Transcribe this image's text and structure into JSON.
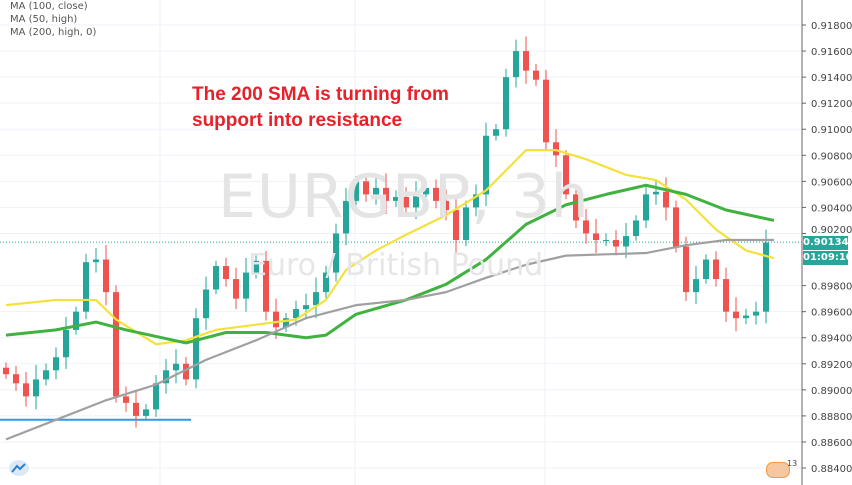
{
  "legend": [
    "MA (100, close)",
    "MA (50, high)",
    "MA (200, high, 0)"
  ],
  "annotation": [
    "The 200 SMA is turning from",
    "support into resistance"
  ],
  "watermark": {
    "symbol": "EURGBP, 3h",
    "name": "Euro / British Pound"
  },
  "price_label": "0.90134",
  "countdown_label": "01:09:10",
  "flag_count": "13",
  "colors": {
    "up": "#26a69a",
    "down": "#ef5350",
    "ma50": "#f5e13b",
    "ma100": "#3fb23f",
    "ma200": "#a0a0a0",
    "support": "#2f9be8",
    "annotation": "#e8202a"
  },
  "chart_data": {
    "type": "candlestick",
    "ylim": [
      0.883,
      0.9205
    ],
    "y_ticks": [
      "0.91800",
      "0.91600",
      "0.91400",
      "0.91200",
      "0.91000",
      "0.90800",
      "0.90600",
      "0.90400",
      "0.90200",
      "0.89800",
      "0.89600",
      "0.89400",
      "0.89200",
      "0.89000",
      "0.88800",
      "0.88600",
      "0.88400"
    ],
    "grid": true,
    "closes": [
      0.8912,
      0.8905,
      0.8895,
      0.8908,
      0.8915,
      0.8925,
      0.8946,
      0.896,
      0.8998,
      0.9,
      0.8975,
      0.8895,
      0.889,
      0.888,
      0.8885,
      0.8905,
      0.8915,
      0.892,
      0.8908,
      0.8955,
      0.8977,
      0.8995,
      0.8985,
      0.897,
      0.899,
      0.8999,
      0.896,
      0.8948,
      0.8955,
      0.8962,
      0.8965,
      0.8975,
      0.899,
      0.902,
      0.9045,
      0.906,
      0.905,
      0.9055,
      0.9045,
      0.9048,
      0.904,
      0.905,
      0.9055,
      0.9045,
      0.9038,
      0.9015,
      0.904,
      0.905,
      0.9095,
      0.91,
      0.914,
      0.916,
      0.9145,
      0.9138,
      0.909,
      0.908,
      0.905,
      0.903,
      0.902,
      0.9015,
      0.9015,
      0.901,
      0.9018,
      0.903,
      0.905,
      0.9052,
      0.904,
      0.901,
      0.8975,
      0.8985,
      0.9,
      0.8985,
      0.896,
      0.8955,
      0.8957,
      0.896,
      0.9013
    ],
    "series": [
      {
        "name": "MA (50, high)",
        "x": [
          0,
          5,
          9,
          11,
          15,
          18,
          21,
          25,
          29,
          32,
          34,
          37,
          40,
          44,
          48,
          52,
          55,
          58,
          62,
          65,
          68,
          71,
          74,
          76.8
        ],
        "values": [
          0.8965,
          0.8969,
          0.8969,
          0.8954,
          0.8935,
          0.8938,
          0.8946,
          0.895,
          0.8954,
          0.8969,
          0.8992,
          0.9007,
          0.9019,
          0.9034,
          0.9053,
          0.9084,
          0.9084,
          0.9077,
          0.9065,
          0.9061,
          0.9046,
          0.9023,
          0.9007,
          0.9001
        ]
      },
      {
        "name": "MA (100, close)",
        "x": [
          0,
          5,
          9,
          12,
          18,
          22,
          26,
          30,
          32,
          35,
          40,
          44,
          48,
          52,
          56,
          60,
          64,
          68,
          72,
          76.8
        ],
        "values": [
          0.8942,
          0.8946,
          0.8952,
          0.8946,
          0.8936,
          0.8944,
          0.8944,
          0.894,
          0.8942,
          0.8958,
          0.8969,
          0.8981,
          0.9,
          0.9027,
          0.9042,
          0.905,
          0.9057,
          0.905,
          0.9038,
          0.903
        ]
      },
      {
        "name": "MA (200, high, 0)",
        "x": [
          0,
          5,
          10,
          15,
          20,
          25,
          30,
          35,
          40,
          44,
          48,
          52,
          56,
          60,
          64,
          68,
          72,
          76.8
        ],
        "values": [
          0.8862,
          0.8877,
          0.8892,
          0.8904,
          0.8923,
          0.8938,
          0.8955,
          0.8965,
          0.8969,
          0.8975,
          0.8986,
          0.8996,
          0.9003,
          0.9004,
          0.9005,
          0.9011,
          0.9015,
          0.9015
        ]
      }
    ],
    "support_level": 0.8877,
    "support_range": [
      0,
      18.5
    ],
    "last_price": 0.90134
  }
}
